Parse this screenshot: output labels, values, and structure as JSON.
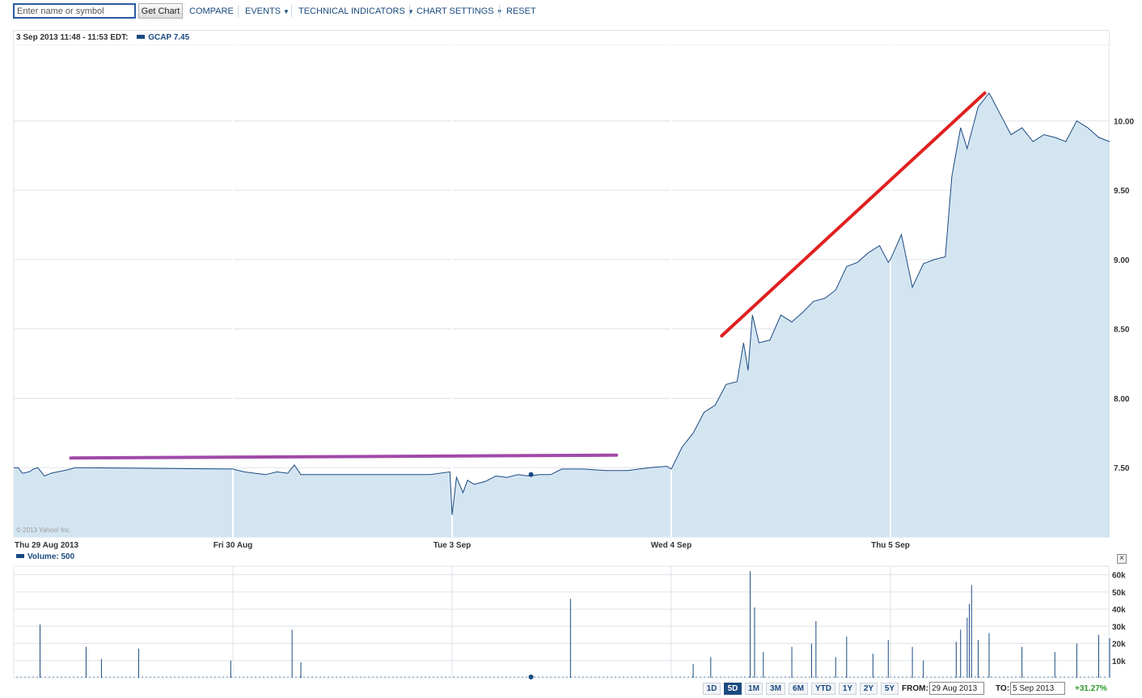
{
  "toolbar": {
    "search_placeholder": "Enter name or symbol",
    "get_chart_label": "Get Chart",
    "menu": [
      {
        "label": "COMPARE",
        "caret": false
      },
      {
        "label": "EVENTS",
        "caret": true
      },
      {
        "label": "TECHNICAL INDICATORS",
        "caret": true
      },
      {
        "label": "CHART SETTINGS",
        "caret": true
      },
      {
        "label": "RESET",
        "caret": false
      }
    ]
  },
  "header": {
    "time_range": "3 Sep 2013 11:48 - 11:53 EDT:",
    "legend": "GCAP 7.45"
  },
  "copyright": "© 2013 Yahoo! Inc.",
  "volume": {
    "label": "Volume: 500",
    "close_glyph": "×"
  },
  "controls": {
    "ranges": [
      {
        "label": "1D",
        "active": false
      },
      {
        "label": "5D",
        "active": true
      },
      {
        "label": "1M",
        "active": false
      },
      {
        "label": "3M",
        "active": false
      },
      {
        "label": "6M",
        "active": false
      },
      {
        "label": "YTD",
        "active": false
      },
      {
        "label": "1Y",
        "active": false
      },
      {
        "label": "2Y",
        "active": false
      },
      {
        "label": "5Y",
        "active": false
      }
    ],
    "from_label": "FROM:",
    "from_value": "29 Aug 2013",
    "to_label": "TO:",
    "to_value": "5 Sep 2013",
    "change": "+31.27%"
  },
  "colors": {
    "line": "#1a4a80",
    "fill": "#d4e5f2",
    "grid": "#dde3ea",
    "annotation_red": "#e02020",
    "annotation_purple": "#a04aa8",
    "positive": "#2a9a2a"
  },
  "chart_data": [
    {
      "type": "area",
      "series": [
        {
          "name": "GCAP",
          "points": [
            [
              0,
              7.5
            ],
            [
              0.02,
              7.5
            ],
            [
              0.04,
              7.46
            ],
            [
              0.07,
              7.47
            ],
            [
              0.09,
              7.49
            ],
            [
              0.11,
              7.5
            ],
            [
              0.14,
              7.44
            ],
            [
              0.17,
              7.46
            ],
            [
              0.2,
              7.47
            ],
            [
              0.23,
              7.48
            ],
            [
              0.26,
              7.49
            ],
            [
              0.28,
              7.5
            ],
            [
              1.0,
              7.49
            ],
            [
              1.05,
              7.47
            ],
            [
              1.1,
              7.46
            ],
            [
              1.15,
              7.45
            ],
            [
              1.2,
              7.47
            ],
            [
              1.25,
              7.46
            ],
            [
              1.28,
              7.52
            ],
            [
              1.31,
              7.45
            ],
            [
              1.4,
              7.45
            ],
            [
              1.5,
              7.45
            ],
            [
              1.6,
              7.45
            ],
            [
              1.7,
              7.45
            ],
            [
              1.8,
              7.45
            ],
            [
              1.9,
              7.45
            ],
            [
              1.99,
              7.47
            ],
            [
              2.0,
              7.16
            ],
            [
              2.02,
              7.43
            ],
            [
              2.05,
              7.32
            ],
            [
              2.07,
              7.41
            ],
            [
              2.1,
              7.38
            ],
            [
              2.15,
              7.4
            ],
            [
              2.2,
              7.44
            ],
            [
              2.25,
              7.43
            ],
            [
              2.3,
              7.45
            ],
            [
              2.35,
              7.44
            ],
            [
              2.4,
              7.45
            ],
            [
              2.45,
              7.45
            ],
            [
              2.5,
              7.49
            ],
            [
              2.6,
              7.49
            ],
            [
              2.7,
              7.48
            ],
            [
              2.8,
              7.48
            ],
            [
              2.9,
              7.5
            ],
            [
              2.98,
              7.51
            ],
            [
              3.0,
              7.49
            ],
            [
              3.05,
              7.65
            ],
            [
              3.1,
              7.75
            ],
            [
              3.15,
              7.9
            ],
            [
              3.2,
              7.95
            ],
            [
              3.25,
              8.1
            ],
            [
              3.3,
              8.12
            ],
            [
              3.33,
              8.4
            ],
            [
              3.35,
              8.2
            ],
            [
              3.37,
              8.6
            ],
            [
              3.4,
              8.4
            ],
            [
              3.45,
              8.42
            ],
            [
              3.5,
              8.6
            ],
            [
              3.55,
              8.55
            ],
            [
              3.6,
              8.62
            ],
            [
              3.65,
              8.7
            ],
            [
              3.7,
              8.72
            ],
            [
              3.75,
              8.78
            ],
            [
              3.8,
              8.95
            ],
            [
              3.85,
              8.98
            ],
            [
              3.9,
              9.05
            ],
            [
              3.95,
              9.1
            ],
            [
              3.99,
              8.98
            ],
            [
              4.0,
              9.0
            ],
            [
              4.05,
              9.18
            ],
            [
              4.1,
              8.8
            ],
            [
              4.15,
              8.97
            ],
            [
              4.2,
              9.0
            ],
            [
              4.25,
              9.02
            ],
            [
              4.28,
              9.6
            ],
            [
              4.32,
              9.95
            ],
            [
              4.35,
              9.8
            ],
            [
              4.4,
              10.1
            ],
            [
              4.45,
              10.2
            ],
            [
              4.5,
              10.05
            ],
            [
              4.55,
              9.9
            ],
            [
              4.6,
              9.95
            ],
            [
              4.65,
              9.85
            ],
            [
              4.7,
              9.9
            ],
            [
              4.75,
              9.88
            ],
            [
              4.8,
              9.85
            ],
            [
              4.85,
              10.0
            ],
            [
              4.9,
              9.95
            ],
            [
              4.95,
              9.88
            ],
            [
              5.0,
              9.85
            ]
          ]
        }
      ],
      "x_categories": [
        "Thu 29 Aug 2013",
        "Fri 30 Aug",
        "Tue 3 Sep",
        "Wed 4 Sep",
        "Thu 5 Sep"
      ],
      "yticks": [
        "10.00",
        "9.50",
        "9.00",
        "8.50",
        "8.00",
        "7.50"
      ],
      "ylim": [
        7.0,
        10.55
      ],
      "grid": true,
      "annotations": [
        {
          "type": "line",
          "color": "red",
          "from": [
            3.23,
            8.45
          ],
          "to": [
            4.43,
            10.2
          ]
        },
        {
          "type": "line",
          "color": "purple",
          "from": [
            0.26,
            7.57
          ],
          "to": [
            2.75,
            7.59
          ]
        }
      ],
      "marker": [
        2.36,
        7.45
      ]
    },
    {
      "type": "bar",
      "name": "Volume",
      "yticks": [
        "60k",
        "50k",
        "40k",
        "30k",
        "20k",
        "10k"
      ],
      "ylim": [
        0,
        65000
      ],
      "spikes": [
        [
          0.12,
          31000
        ],
        [
          0.33,
          18000
        ],
        [
          0.4,
          11000
        ],
        [
          0.57,
          17000
        ],
        [
          0.99,
          10000
        ],
        [
          1.27,
          28000
        ],
        [
          1.31,
          9000
        ],
        [
          2.54,
          46000
        ],
        [
          3.1,
          8000
        ],
        [
          3.18,
          12000
        ],
        [
          3.36,
          62000
        ],
        [
          3.38,
          41000
        ],
        [
          3.42,
          15000
        ],
        [
          3.55,
          18000
        ],
        [
          3.64,
          20000
        ],
        [
          3.66,
          33000
        ],
        [
          3.75,
          12000
        ],
        [
          3.8,
          24000
        ],
        [
          3.92,
          14000
        ],
        [
          3.99,
          22000
        ],
        [
          4.1,
          18000
        ],
        [
          4.15,
          10000
        ],
        [
          4.3,
          21000
        ],
        [
          4.32,
          28000
        ],
        [
          4.35,
          35000
        ],
        [
          4.36,
          43000
        ],
        [
          4.37,
          54000
        ],
        [
          4.4,
          22000
        ],
        [
          4.45,
          26000
        ],
        [
          4.6,
          18000
        ],
        [
          4.75,
          15000
        ],
        [
          4.85,
          20000
        ],
        [
          4.95,
          25000
        ],
        [
          5.0,
          23000
        ]
      ]
    }
  ]
}
